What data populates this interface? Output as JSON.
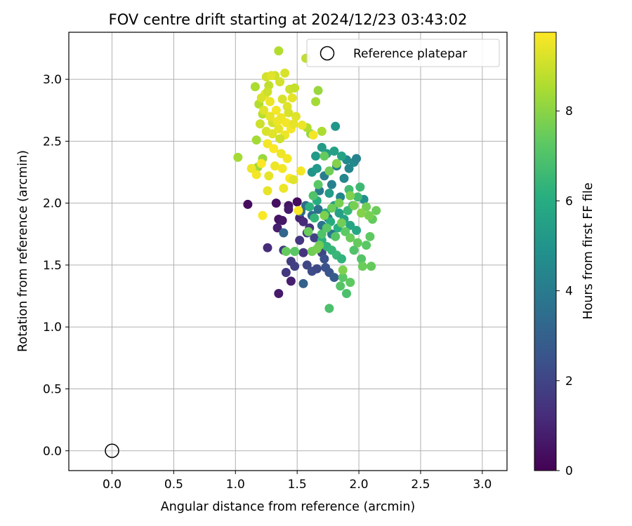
{
  "chart_data": {
    "type": "scatter",
    "title": "FOV centre drift starting at 2024/12/23 03:43:02",
    "xlabel": "Angular distance from reference (arcmin)",
    "ylabel": "Rotation from reference (arcmin)",
    "xlim": [
      -0.35,
      3.2
    ],
    "ylim": [
      -0.16,
      3.38
    ],
    "x_ticks": [
      "0.0",
      "0.5",
      "1.0",
      "1.5",
      "2.0",
      "2.5",
      "3.0"
    ],
    "y_ticks": [
      "0.0",
      "0.5",
      "1.0",
      "1.5",
      "2.0",
      "2.5",
      "3.0"
    ],
    "grid": true,
    "legend": {
      "placement": "top-right",
      "label": "Reference platepar"
    },
    "reference_point": {
      "x": 0.0,
      "y": 0.0
    },
    "colorbar": {
      "label": "Hours from first FF file",
      "colormap": "viridis",
      "range": [
        0,
        9.75
      ],
      "ticks": [
        "0",
        "2",
        "4",
        "6",
        "8"
      ]
    },
    "points": [
      [
        1.1,
        1.99,
        0.3
      ],
      [
        1.33,
        2.0,
        0.4
      ],
      [
        1.43,
        1.98,
        0.5
      ],
      [
        1.5,
        2.01,
        0.3
      ],
      [
        1.35,
        1.87,
        0.5
      ],
      [
        1.38,
        1.86,
        0.6
      ],
      [
        1.43,
        1.95,
        0.7
      ],
      [
        1.34,
        1.8,
        0.8
      ],
      [
        1.45,
        1.37,
        0.8
      ],
      [
        1.35,
        1.27,
        0.7
      ],
      [
        1.26,
        1.64,
        1.2
      ],
      [
        1.41,
        1.44,
        1.5
      ],
      [
        1.39,
        1.62,
        1.6
      ],
      [
        1.45,
        1.53,
        1.7
      ],
      [
        1.52,
        1.7,
        1.5
      ],
      [
        1.55,
        1.6,
        1.4
      ],
      [
        1.48,
        1.49,
        1.8
      ],
      [
        1.58,
        1.5,
        2.0
      ],
      [
        1.62,
        1.45,
        2.2
      ],
      [
        1.66,
        1.47,
        2.1
      ],
      [
        1.52,
        1.88,
        1.0
      ],
      [
        1.55,
        1.85,
        1.2
      ],
      [
        1.6,
        1.8,
        1.4
      ],
      [
        1.58,
        1.76,
        1.6
      ],
      [
        1.64,
        1.72,
        1.9
      ],
      [
        1.7,
        1.6,
        2.0
      ],
      [
        1.72,
        1.55,
        2.4
      ],
      [
        1.76,
        1.44,
        2.6
      ],
      [
        1.8,
        1.4,
        2.8
      ],
      [
        1.73,
        1.48,
        2.5
      ],
      [
        1.55,
        1.35,
        3.0
      ],
      [
        1.39,
        1.76,
        3.2
      ],
      [
        1.53,
        1.93,
        3.3
      ],
      [
        1.57,
        1.98,
        3.4
      ],
      [
        1.62,
        1.9,
        3.5
      ],
      [
        1.67,
        1.95,
        3.6
      ],
      [
        1.7,
        1.82,
        3.7
      ],
      [
        1.75,
        1.88,
        3.8
      ],
      [
        1.78,
        1.75,
        3.9
      ],
      [
        1.68,
        2.1,
        4.0
      ],
      [
        1.72,
        2.22,
        4.1
      ],
      [
        1.78,
        2.15,
        4.2
      ],
      [
        1.82,
        2.3,
        4.3
      ],
      [
        1.85,
        2.05,
        4.4
      ],
      [
        1.88,
        2.2,
        4.5
      ],
      [
        1.9,
        2.35,
        4.6
      ],
      [
        1.92,
        2.28,
        4.4
      ],
      [
        1.96,
        2.33,
        4.6
      ],
      [
        1.98,
        2.36,
        4.3
      ],
      [
        2.04,
        2.03,
        4.8
      ],
      [
        1.81,
        2.62,
        5.1
      ],
      [
        1.65,
        2.38,
        5.2
      ],
      [
        1.7,
        2.45,
        5.3
      ],
      [
        1.74,
        2.4,
        5.4
      ],
      [
        1.8,
        2.42,
        5.5
      ],
      [
        1.86,
        2.38,
        5.6
      ],
      [
        1.62,
        2.25,
        5.0
      ],
      [
        1.66,
        2.28,
        5.2
      ],
      [
        1.76,
        2.08,
        5.3
      ],
      [
        1.8,
        1.98,
        5.4
      ],
      [
        1.84,
        1.92,
        5.5
      ],
      [
        1.88,
        1.87,
        5.6
      ],
      [
        1.93,
        1.82,
        5.7
      ],
      [
        1.98,
        1.78,
        5.8
      ],
      [
        1.73,
        1.92,
        5.9
      ],
      [
        1.77,
        1.85,
        6.0
      ],
      [
        1.83,
        1.8,
        6.1
      ],
      [
        1.66,
        2.02,
        6.0
      ],
      [
        1.7,
        1.7,
        6.2
      ],
      [
        1.74,
        1.65,
        6.3
      ],
      [
        1.78,
        1.62,
        6.4
      ],
      [
        1.82,
        1.58,
        6.5
      ],
      [
        1.86,
        1.55,
        6.3
      ],
      [
        1.6,
        1.97,
        6.2
      ],
      [
        1.64,
        1.88,
        6.4
      ],
      [
        1.91,
        1.94,
        6.5
      ],
      [
        1.95,
        1.98,
        6.6
      ],
      [
        1.99,
        2.05,
        6.7
      ],
      [
        2.01,
        2.13,
        6.6
      ],
      [
        1.92,
        2.11,
        6.7
      ],
      [
        1.76,
        1.15,
        6.9
      ],
      [
        1.9,
        1.27,
        6.9
      ],
      [
        1.85,
        1.33,
        7.1
      ],
      [
        1.87,
        1.4,
        7.2
      ],
      [
        1.93,
        1.36,
        7.3
      ],
      [
        1.96,
        1.62,
        7.0
      ],
      [
        2.02,
        1.55,
        7.1
      ],
      [
        2.06,
        1.66,
        7.2
      ],
      [
        2.09,
        1.73,
        7.3
      ],
      [
        2.1,
        1.49,
        7.4
      ],
      [
        2.03,
        1.49,
        7.5
      ],
      [
        2.11,
        1.87,
        7.4
      ],
      [
        2.14,
        1.94,
        7.5
      ],
      [
        2.06,
        1.97,
        7.6
      ],
      [
        2.08,
        1.9,
        7.7
      ],
      [
        1.7,
        1.75,
        7.0
      ],
      [
        1.74,
        1.8,
        7.2
      ],
      [
        1.81,
        1.73,
        7.1
      ],
      [
        1.89,
        1.77,
        7.3
      ],
      [
        1.93,
        1.72,
        7.5
      ],
      [
        1.99,
        1.68,
        7.4
      ],
      [
        1.86,
        1.84,
        7.6
      ],
      [
        1.93,
        2.06,
        7.8
      ],
      [
        1.96,
        1.98,
        7.7
      ],
      [
        2.02,
        1.92,
        7.9
      ],
      [
        1.68,
        1.66,
        7.6
      ],
      [
        1.72,
        1.9,
        7.8
      ],
      [
        1.78,
        1.96,
        7.5
      ],
      [
        1.84,
        2.0,
        7.7
      ],
      [
        1.87,
        1.46,
        7.8
      ],
      [
        1.63,
        2.06,
        7.0
      ],
      [
        1.67,
        2.15,
        7.2
      ],
      [
        1.72,
        2.38,
        7.4
      ],
      [
        1.76,
        2.26,
        7.6
      ],
      [
        1.82,
        2.32,
        7.9
      ],
      [
        1.48,
        1.61,
        7.2
      ],
      [
        1.41,
        1.61,
        7.4
      ],
      [
        1.59,
        1.77,
        7.5
      ],
      [
        1.62,
        1.61,
        7.6
      ],
      [
        1.66,
        1.63,
        7.7
      ],
      [
        1.61,
        2.56,
        8.0
      ],
      [
        1.67,
        2.91,
        8.2
      ],
      [
        1.65,
        2.82,
        8.4
      ],
      [
        1.58,
        2.61,
        8.6
      ],
      [
        1.7,
        2.58,
        8.5
      ],
      [
        1.22,
        2.36,
        8.2
      ],
      [
        1.18,
        2.29,
        8.3
      ],
      [
        1.02,
        2.37,
        8.4
      ],
      [
        1.35,
        3.23,
        8.6
      ],
      [
        1.57,
        3.17,
        8.8
      ],
      [
        1.16,
        2.94,
        8.5
      ],
      [
        1.17,
        2.51,
        8.4
      ],
      [
        1.19,
        2.8,
        8.6
      ],
      [
        1.22,
        2.72,
        8.7
      ],
      [
        1.27,
        2.95,
        8.8
      ],
      [
        1.32,
        3.03,
        9.0
      ],
      [
        1.36,
        2.98,
        9.1
      ],
      [
        1.4,
        3.05,
        9.2
      ],
      [
        1.44,
        2.92,
        9.0
      ],
      [
        1.48,
        2.93,
        8.9
      ],
      [
        1.25,
        3.02,
        9.1
      ],
      [
        1.29,
        3.03,
        9.3
      ],
      [
        1.38,
        2.84,
        9.2
      ],
      [
        1.42,
        2.78,
        9.3
      ],
      [
        1.46,
        2.85,
        9.4
      ],
      [
        1.24,
        2.88,
        9.4
      ],
      [
        1.28,
        2.82,
        9.5
      ],
      [
        1.33,
        2.75,
        9.6
      ],
      [
        1.37,
        2.69,
        9.5
      ],
      [
        1.41,
        2.65,
        9.6
      ],
      [
        1.2,
        2.64,
        9.0
      ],
      [
        1.25,
        2.58,
        9.2
      ],
      [
        1.3,
        2.56,
        9.3
      ],
      [
        1.35,
        2.6,
        9.4
      ],
      [
        1.4,
        2.55,
        9.5
      ],
      [
        1.45,
        2.6,
        9.6
      ],
      [
        1.26,
        2.48,
        9.6
      ],
      [
        1.31,
        2.44,
        9.7
      ],
      [
        1.37,
        2.4,
        9.5
      ],
      [
        1.42,
        2.36,
        9.6
      ],
      [
        1.27,
        2.22,
        9.4
      ],
      [
        1.32,
        2.3,
        9.5
      ],
      [
        1.38,
        2.28,
        9.6
      ],
      [
        1.44,
        2.2,
        9.7
      ],
      [
        1.47,
        2.19,
        9.3
      ],
      [
        1.13,
        2.28,
        9.5
      ],
      [
        1.17,
        2.23,
        9.6
      ],
      [
        1.21,
        2.32,
        9.7
      ],
      [
        1.26,
        2.1,
        9.4
      ],
      [
        1.39,
        2.12,
        9.5
      ],
      [
        1.22,
        1.9,
        9.7
      ],
      [
        1.53,
        2.26,
        9.6
      ],
      [
        1.51,
        1.94,
        9.7
      ],
      [
        1.54,
        2.63,
        9.5
      ],
      [
        1.63,
        2.55,
        9.6
      ],
      [
        1.49,
        2.7,
        9.3
      ],
      [
        1.47,
        2.64,
        9.4
      ],
      [
        1.43,
        2.73,
        9.2
      ],
      [
        1.3,
        2.65,
        9.1
      ],
      [
        1.36,
        2.52,
        9.0
      ],
      [
        1.23,
        2.75,
        9.3
      ],
      [
        1.28,
        2.7,
        9.4
      ],
      [
        1.34,
        2.66,
        9.5
      ],
      [
        1.21,
        2.85,
        9.2
      ],
      [
        1.26,
        2.9,
        9.0
      ]
    ]
  }
}
